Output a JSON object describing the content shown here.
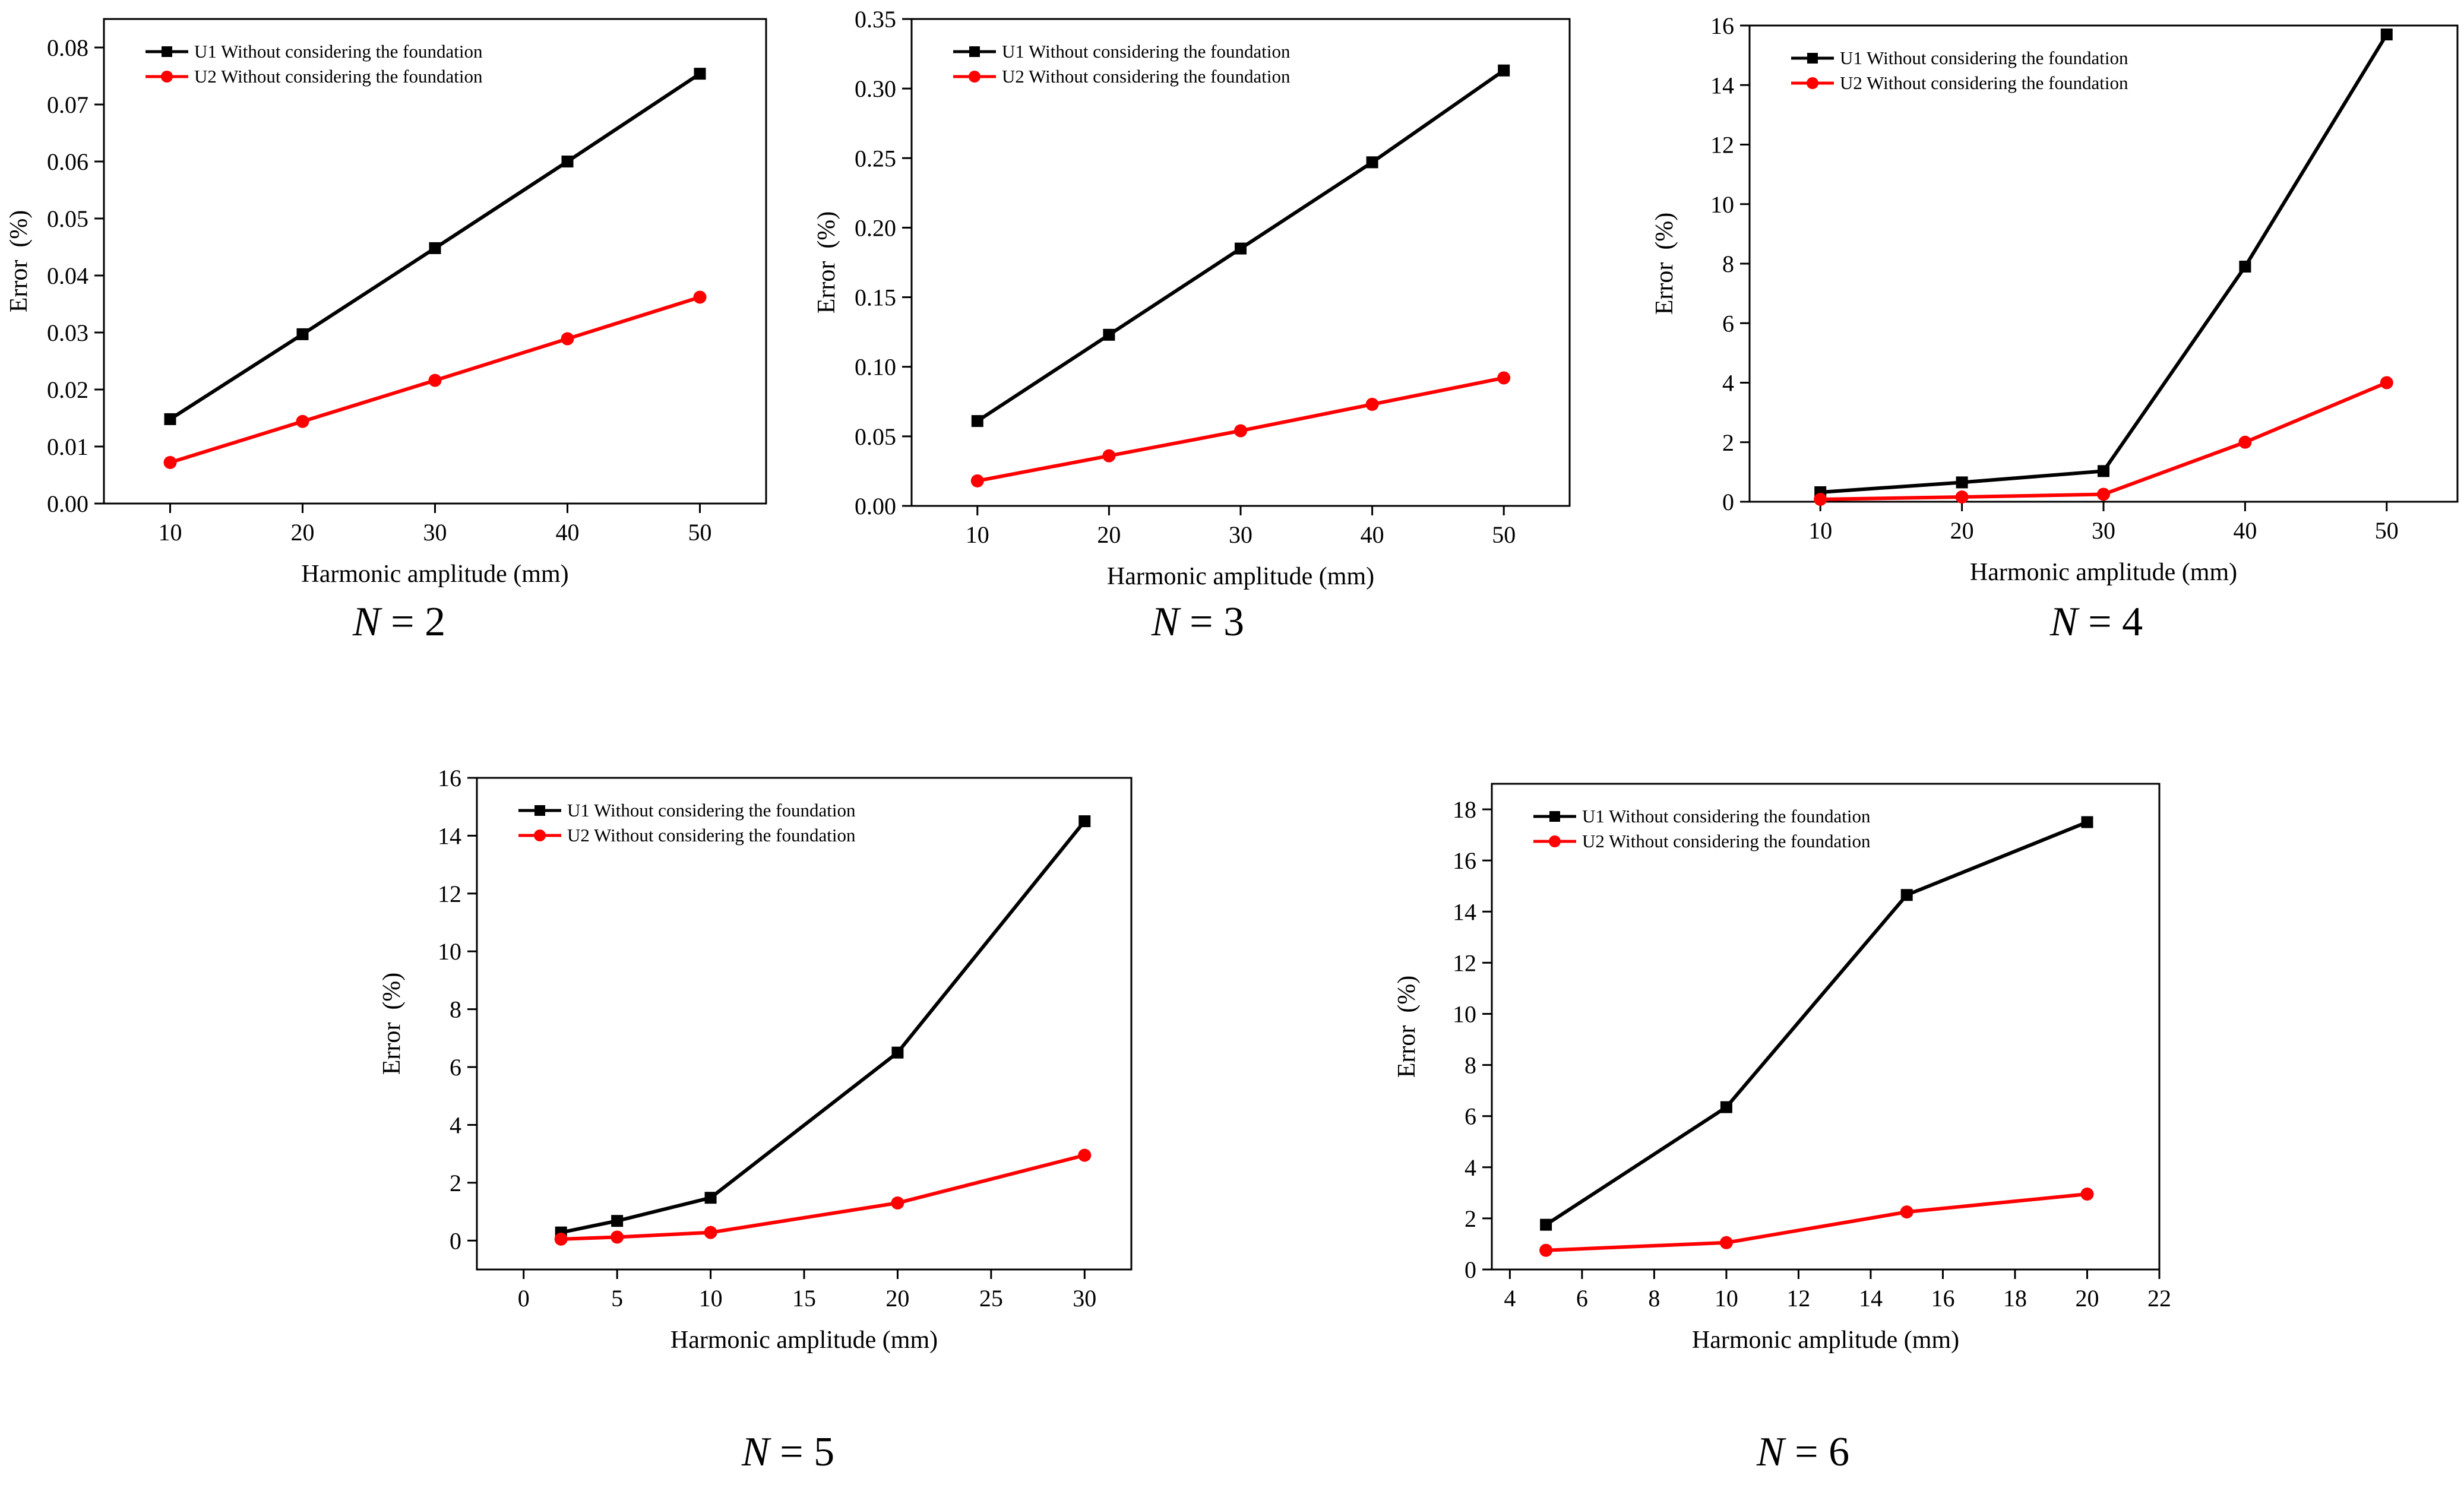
{
  "figure": {
    "series_colors": {
      "U1": "#000000",
      "U2": "#ff0000"
    }
  },
  "chart_data": [
    {
      "type": "line",
      "caption_var": "N",
      "caption_val": "= 2",
      "xlabel": "Harmonic amplitude (mm)",
      "ylabel": "Error  (%)",
      "xlim": [
        5,
        55
      ],
      "ylim": [
        0,
        0.085
      ],
      "xticks": [
        10,
        20,
        30,
        40,
        50
      ],
      "xtick_labels": [
        "10",
        "20",
        "30",
        "40",
        "50"
      ],
      "yticks": [
        0,
        0.01,
        0.02,
        0.03,
        0.04,
        0.05,
        0.06,
        0.07,
        0.08
      ],
      "ytick_labels": [
        "0.00",
        "0.01",
        "0.02",
        "0.03",
        "0.04",
        "0.05",
        "0.06",
        "0.07",
        "0.08"
      ],
      "x": [
        10,
        20,
        30,
        40,
        50
      ],
      "legend_position": "top-left",
      "series": [
        {
          "name": "U1 Without considering the foundation",
          "values": [
            0.0148,
            0.0297,
            0.0448,
            0.06,
            0.0754
          ]
        },
        {
          "name": "U2 Without considering the foundation",
          "values": [
            0.0072,
            0.0144,
            0.0216,
            0.0289,
            0.0362
          ]
        }
      ]
    },
    {
      "type": "line",
      "caption_var": "N",
      "caption_val": "= 3",
      "xlabel": "Harmonic amplitude (mm)",
      "ylabel": "Error  (%)",
      "xlim": [
        5,
        55
      ],
      "ylim": [
        0,
        0.35
      ],
      "xticks": [
        10,
        20,
        30,
        40,
        50
      ],
      "xtick_labels": [
        "10",
        "20",
        "30",
        "40",
        "50"
      ],
      "yticks": [
        0,
        0.05,
        0.1,
        0.15,
        0.2,
        0.25,
        0.3,
        0.35
      ],
      "ytick_labels": [
        "0.00",
        "0.05",
        "0.10",
        "0.15",
        "0.20",
        "0.25",
        "0.30",
        "0.35"
      ],
      "x": [
        10,
        20,
        30,
        40,
        50
      ],
      "legend_position": "top-left",
      "series": [
        {
          "name": "U1 Without considering the foundation",
          "values": [
            0.061,
            0.123,
            0.185,
            0.247,
            0.313
          ]
        },
        {
          "name": "U2 Without considering the foundation",
          "values": [
            0.018,
            0.036,
            0.054,
            0.073,
            0.092
          ]
        }
      ]
    },
    {
      "type": "line",
      "caption_var": "N",
      "caption_val": "= 4",
      "xlabel": "Harmonic amplitude (mm)",
      "ylabel": "Error  (%)",
      "xlim": [
        5,
        55
      ],
      "ylim": [
        0,
        16
      ],
      "xticks": [
        10,
        20,
        30,
        40,
        50
      ],
      "xtick_labels": [
        "10",
        "20",
        "30",
        "40",
        "50"
      ],
      "yticks": [
        0,
        2,
        4,
        6,
        8,
        10,
        12,
        14,
        16
      ],
      "ytick_labels": [
        "0",
        "2",
        "4",
        "6",
        "8",
        "10",
        "12",
        "14",
        "16"
      ],
      "x": [
        10,
        20,
        30,
        40,
        50
      ],
      "legend_position": "top-left",
      "series": [
        {
          "name": "U1 Without considering the foundation",
          "values": [
            0.32,
            0.65,
            1.03,
            7.9,
            15.7
          ]
        },
        {
          "name": "U2 Without considering the foundation",
          "values": [
            0.08,
            0.16,
            0.25,
            2.0,
            4.0
          ]
        }
      ]
    },
    {
      "type": "line",
      "caption_var": "N",
      "caption_val": "= 5",
      "xlabel": "Harmonic amplitude (mm)",
      "ylabel": "Error  (%)",
      "xlim": [
        -2.5,
        32.5
      ],
      "ylim": [
        -1,
        16
      ],
      "xticks": [
        0,
        5,
        10,
        15,
        20,
        25,
        30
      ],
      "xtick_labels": [
        "0",
        "5",
        "10",
        "15",
        "20",
        "25",
        "30"
      ],
      "yticks": [
        0,
        2,
        4,
        6,
        8,
        10,
        12,
        14,
        16
      ],
      "ytick_labels": [
        "0",
        "2",
        "4",
        "6",
        "8",
        "10",
        "12",
        "14",
        "16"
      ],
      "x": [
        2,
        5,
        10,
        20,
        30
      ],
      "legend_position": "top-left",
      "series": [
        {
          "name": "U1 Without considering the foundation",
          "values": [
            0.28,
            0.68,
            1.48,
            6.5,
            14.5
          ]
        },
        {
          "name": "U2 Without considering the foundation",
          "values": [
            0.05,
            0.12,
            0.28,
            1.3,
            2.95
          ]
        }
      ]
    },
    {
      "type": "line",
      "caption_var": "N",
      "caption_val": "= 6",
      "xlabel": "Harmonic amplitude (mm)",
      "ylabel": "Error  (%)",
      "xlim": [
        3.5,
        22
      ],
      "ylim": [
        0,
        19
      ],
      "xticks": [
        4,
        6,
        8,
        10,
        12,
        14,
        16,
        18,
        20,
        22
      ],
      "xtick_labels": [
        "4",
        "6",
        "8",
        "10",
        "12",
        "14",
        "16",
        "18",
        "20",
        "22"
      ],
      "yticks": [
        0,
        2,
        4,
        6,
        8,
        10,
        12,
        14,
        16,
        18
      ],
      "ytick_labels": [
        "0",
        "2",
        "4",
        "6",
        "8",
        "10",
        "12",
        "14",
        "16",
        "18"
      ],
      "x": [
        5,
        10,
        15,
        20
      ],
      "legend_position": "top-left",
      "series": [
        {
          "name": "U1 Without considering the foundation",
          "values": [
            1.75,
            6.35,
            14.65,
            17.5
          ]
        },
        {
          "name": "U2 Without considering the foundation",
          "values": [
            0.75,
            1.05,
            2.25,
            2.95
          ]
        }
      ]
    }
  ]
}
